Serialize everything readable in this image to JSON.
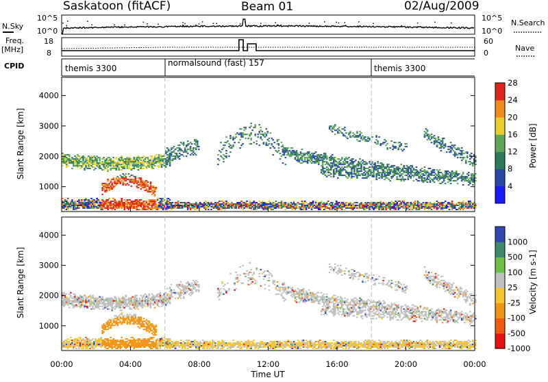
{
  "header": {
    "station": "Saskatoon (fitACF)",
    "beam": "Beam 01",
    "date": "02/Aug/2009"
  },
  "panels": {
    "nsky_label": "N.Sky",
    "nsky_ticks": [
      "10^5",
      "10^0"
    ],
    "nsearch_label": "N.Search",
    "freq_label": "Freq.",
    "freq_unit": "[MHz]",
    "freq_ticks": [
      "18",
      "8"
    ],
    "nave_label": "Nave",
    "nave_ticks": [
      "60",
      "0"
    ],
    "cpid_label": "CPID",
    "cpid_segments": [
      {
        "label": "themis 3300",
        "start_hour": 0
      },
      {
        "label": "normalsound (fast) 157",
        "start_hour": 6
      },
      {
        "label": "themis 3300",
        "start_hour": 18
      }
    ]
  },
  "chart_data": [
    {
      "type": "heatmap",
      "name": "power",
      "ylabel": "Slant Range [km]",
      "ylim": [
        180,
        4600
      ],
      "yticks": [
        1000,
        2000,
        3000,
        4000
      ],
      "xlim_hours": [
        0,
        24
      ],
      "colorbar_label": "Power [dB]",
      "colorbar_ticks": [
        "4",
        "8",
        "12",
        "16",
        "20",
        "24",
        "28"
      ],
      "colorbar_colors": [
        "#1a1aff",
        "#2a47a6",
        "#2f7a5a",
        "#5fa55a",
        "#e8cf30",
        "#f08a1c",
        "#e0261a"
      ]
    },
    {
      "type": "heatmap",
      "name": "velocity",
      "ylabel": "Slant Range [km]",
      "ylim": [
        180,
        4600
      ],
      "yticks": [
        1000,
        2000,
        3000,
        4000
      ],
      "xlim_hours": [
        0,
        24
      ],
      "xlabel": "Time UT",
      "xticks": [
        "00:00",
        "04:00",
        "08:00",
        "12:00",
        "16:00",
        "20:00",
        "00:00"
      ],
      "colorbar_label": "Velocity [m s-1]",
      "colorbar_ticks": [
        "1000",
        "500",
        "100",
        "25",
        "-25",
        "-100",
        "-500",
        "-1000"
      ],
      "colorbar_colors": [
        "#2f46b3",
        "#3f8a6a",
        "#6ec046",
        "#bfbfbf",
        "#f6c530",
        "#f39412",
        "#f05a10",
        "#e61010"
      ]
    }
  ]
}
